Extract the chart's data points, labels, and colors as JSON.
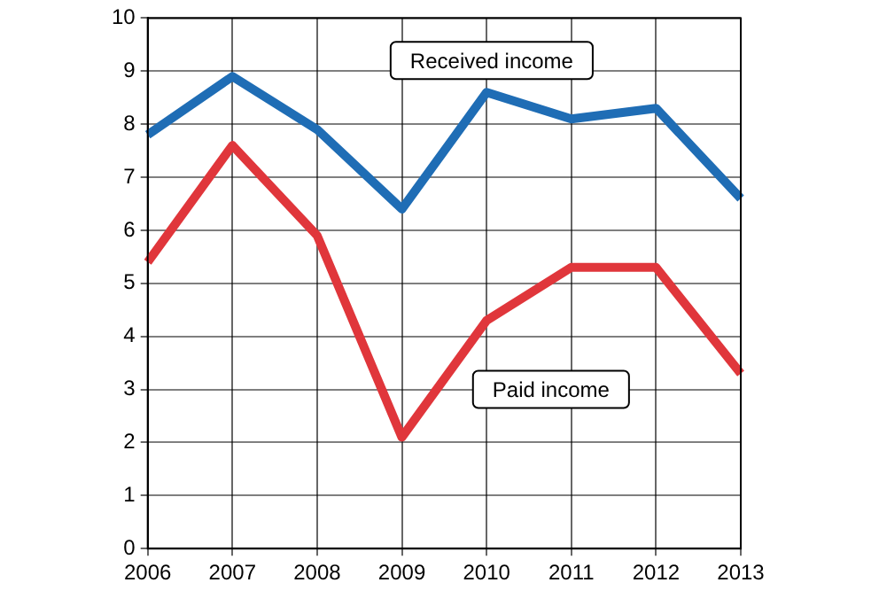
{
  "chart_data": {
    "type": "line",
    "categories": [
      "2006",
      "2007",
      "2008",
      "2009",
      "2010",
      "2011",
      "2012",
      "2013"
    ],
    "series": [
      {
        "name": "Received income",
        "color": "#1f6db5",
        "values": [
          7.8,
          8.9,
          7.9,
          6.4,
          8.6,
          8.1,
          8.3,
          6.6
        ]
      },
      {
        "name": "Paid income",
        "color": "#e0363b",
        "values": [
          5.4,
          7.6,
          5.9,
          2.1,
          4.3,
          5.3,
          5.3,
          3.3
        ]
      }
    ],
    "ylim": [
      0,
      10
    ],
    "yticks": [
      0,
      1,
      2,
      3,
      4,
      5,
      6,
      7,
      8,
      9,
      10
    ],
    "grid": true,
    "legend": false,
    "marker": "none",
    "line_style": "solid"
  }
}
